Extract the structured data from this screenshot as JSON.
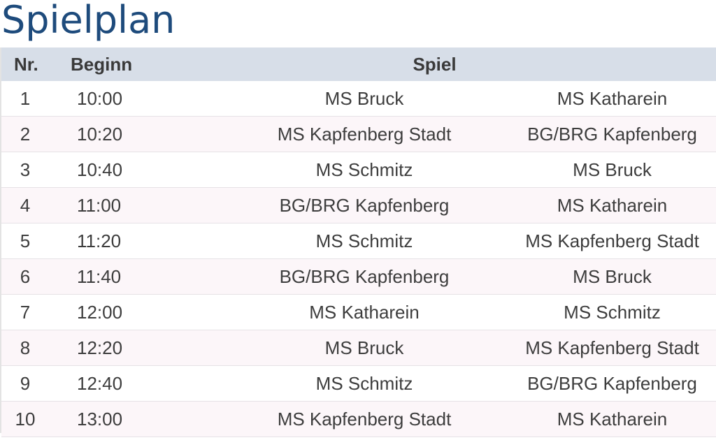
{
  "page": {
    "title": "Spielplan"
  },
  "table": {
    "headers": {
      "nr": "Nr.",
      "beginn": "Beginn",
      "spiel": "Spiel"
    },
    "rows": [
      {
        "nr": "1",
        "beginn": "10:00",
        "home": "MS Bruck",
        "away": "MS Katharein"
      },
      {
        "nr": "2",
        "beginn": "10:20",
        "home": "MS Kapfenberg Stadt",
        "away": "BG/BRG Kapfenberg"
      },
      {
        "nr": "3",
        "beginn": "10:40",
        "home": "MS Schmitz",
        "away": "MS Bruck"
      },
      {
        "nr": "4",
        "beginn": "11:00",
        "home": "BG/BRG Kapfenberg",
        "away": "MS Katharein"
      },
      {
        "nr": "5",
        "beginn": "11:20",
        "home": "MS Schmitz",
        "away": "MS Kapfenberg Stadt"
      },
      {
        "nr": "6",
        "beginn": "11:40",
        "home": "BG/BRG Kapfenberg",
        "away": "MS Bruck"
      },
      {
        "nr": "7",
        "beginn": "12:00",
        "home": "MS Katharein",
        "away": "MS Schmitz"
      },
      {
        "nr": "8",
        "beginn": "12:20",
        "home": "MS Bruck",
        "away": "MS Kapfenberg Stadt"
      },
      {
        "nr": "9",
        "beginn": "12:40",
        "home": "MS Schmitz",
        "away": "BG/BRG Kapfenberg"
      },
      {
        "nr": "10",
        "beginn": "13:00",
        "home": "MS Kapfenberg Stadt",
        "away": "MS Katharein"
      }
    ]
  },
  "colors": {
    "title": "#1e4b7c",
    "header_bg": "#d7dee8",
    "row_alt_bg": "#fcf6f9",
    "text": "#3d3d3d"
  }
}
